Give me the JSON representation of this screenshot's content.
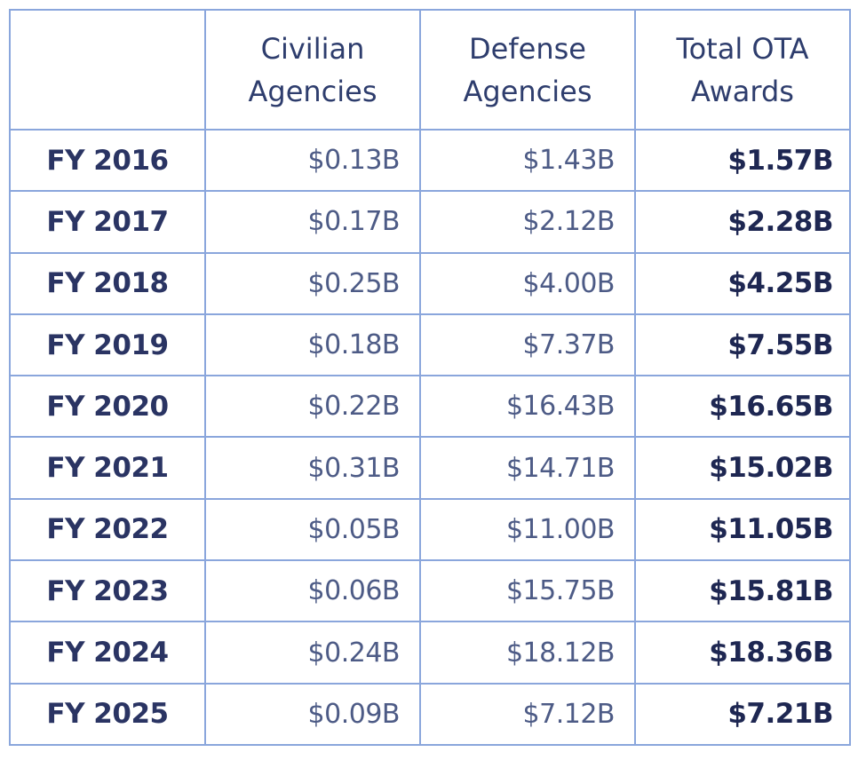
{
  "chart_data": {
    "type": "table",
    "columns": [
      "",
      "Civilian\nAgencies",
      "Defense\nAgencies",
      "Total OTA\nAwards"
    ],
    "rows": [
      {
        "label": "FY 2016",
        "civilian": "$0.13B",
        "defense": "$1.43B",
        "total": "$1.57B"
      },
      {
        "label": "FY 2017",
        "civilian": "$0.17B",
        "defense": "$2.12B",
        "total": "$2.28B"
      },
      {
        "label": "FY 2018",
        "civilian": "$0.25B",
        "defense": "$4.00B",
        "total": "$4.25B"
      },
      {
        "label": "FY 2019",
        "civilian": "$0.18B",
        "defense": "$7.37B",
        "total": "$7.55B"
      },
      {
        "label": "FY 2020",
        "civilian": "$0.22B",
        "defense": "$16.43B",
        "total": "$16.65B"
      },
      {
        "label": "FY 2021",
        "civilian": "$0.31B",
        "defense": "$14.71B",
        "total": "$15.02B"
      },
      {
        "label": "FY 2022",
        "civilian": "$0.05B",
        "defense": "$11.00B",
        "total": "$11.05B"
      },
      {
        "label": "FY 2023",
        "civilian": "$0.06B",
        "defense": "$15.75B",
        "total": "$15.81B"
      },
      {
        "label": "FY 2024",
        "civilian": "$0.24B",
        "defense": "$18.12B",
        "total": "$18.36B"
      },
      {
        "label": "FY 2025",
        "civilian": "$0.09B",
        "defense": "$7.12B",
        "total": "$7.21B"
      }
    ],
    "colors": {
      "border": "#8aa6dc",
      "text": "#2b3a6b"
    }
  }
}
